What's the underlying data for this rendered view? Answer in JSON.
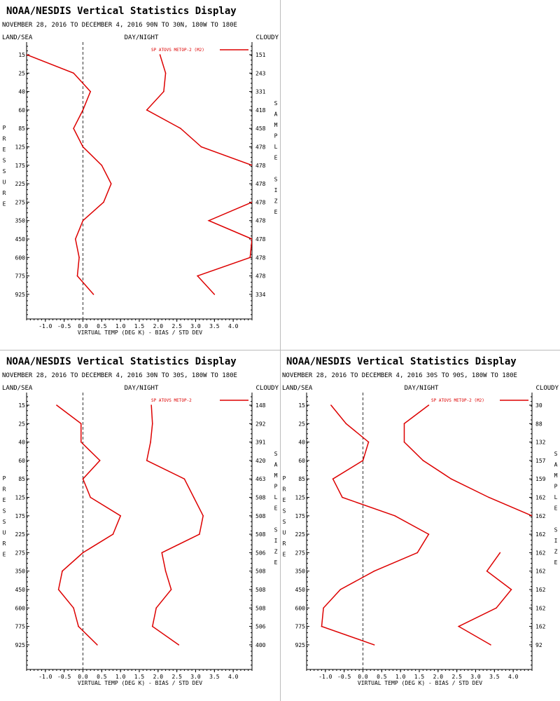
{
  "panel_title": "NOAA/NESDIS Vertical Statistics Display",
  "header_labels": {
    "left": "LAND/SEA",
    "center": "DAY/NIGHT",
    "right": "CLOUDY"
  },
  "left_axis_label": "PRESSURE",
  "right_axis_label": "SAMPLE SIZE",
  "colors": {
    "series": "#dd0000",
    "axis": "#000000",
    "zero_line": "#333333"
  },
  "chart_data": [
    {
      "type": "line",
      "subtitle": "NOVEMBER 28, 2016 TO DECEMBER 4, 2016 90N TO 30N, 180W TO 180E",
      "legend": "SP ATOVS METOP-2 (M2)",
      "legend_position": "top-right",
      "xlabel": "VIRTUAL TEMP (DEG K) - BIAS / STD DEV",
      "xlim": [
        -1.5,
        4.5
      ],
      "xticks": [
        "-1.0",
        "-0.5",
        "0.0",
        "0.5",
        "1.0",
        "1.5",
        "2.0",
        "2.5",
        "3.0",
        "3.5",
        "4.0"
      ],
      "pressure_levels": [
        "15",
        "25",
        "40",
        "60",
        "85",
        "125",
        "175",
        "225",
        "275",
        "350",
        "450",
        "600",
        "775",
        "925"
      ],
      "sample_size": [
        "151",
        "243",
        "331",
        "418",
        "458",
        "478",
        "478",
        "478",
        "478",
        "478",
        "478",
        "478",
        "478",
        "334"
      ],
      "zero_line": "dashed",
      "series": [
        {
          "values": [
            -1.5,
            -0.25,
            0.2,
            0.0,
            -0.25,
            0.0,
            0.5,
            0.75,
            0.55,
            0.0,
            -0.2,
            -0.1,
            -0.15,
            0.28
          ]
        },
        {
          "values": [
            2.05,
            2.2,
            2.15,
            1.7,
            2.6,
            3.15,
            4.5,
            null,
            4.5,
            3.35,
            4.5,
            4.45,
            3.05,
            3.5
          ]
        }
      ]
    },
    {
      "type": "line",
      "subtitle": "NOVEMBER 28, 2016 TO DECEMBER 4, 2016 30N TO 30S, 180W TO 180E",
      "legend": "SP ATOVS METOP-2",
      "legend_position": "top-right",
      "xlabel": "VIRTUAL TEMP (DEG K) - BIAS / STD DEV",
      "xlim": [
        -1.5,
        4.5
      ],
      "xticks": [
        "-1.0",
        "-0.5",
        "0.0",
        "0.5",
        "1.0",
        "1.5",
        "2.0",
        "2.5",
        "3.0",
        "3.5",
        "4.0"
      ],
      "pressure_levels": [
        "15",
        "25",
        "40",
        "60",
        "85",
        "125",
        "175",
        "225",
        "275",
        "350",
        "450",
        "600",
        "775",
        "925"
      ],
      "sample_size": [
        "148",
        "292",
        "391",
        "420",
        "463",
        "508",
        "508",
        "508",
        "506",
        "508",
        "508",
        "508",
        "506",
        "400"
      ],
      "zero_line": "dashed",
      "series": [
        {
          "values": [
            -0.7,
            -0.05,
            -0.05,
            0.45,
            0.0,
            0.2,
            1.0,
            0.8,
            0.0,
            -0.55,
            -0.65,
            -0.25,
            -0.12,
            0.38
          ]
        },
        {
          "values": [
            1.82,
            1.85,
            1.8,
            1.7,
            2.7,
            2.95,
            3.2,
            3.1,
            2.1,
            2.2,
            2.35,
            1.95,
            1.85,
            2.55
          ]
        }
      ]
    },
    {
      "type": "line",
      "subtitle": "NOVEMBER 28, 2016 TO DECEMBER 4, 2016 30S TO 90S, 180W TO 180E",
      "legend": "SP ATOVS METOP-2 (M2)",
      "legend_position": "top-right",
      "xlabel": "VIRTUAL TEMP (DEG K) - BIAS / STD DEV",
      "xlim": [
        -1.5,
        4.5
      ],
      "xticks": [
        "-1.0",
        "-0.5",
        "0.0",
        "0.5",
        "1.0",
        "1.5",
        "2.0",
        "2.5",
        "3.0",
        "3.5",
        "4.0"
      ],
      "pressure_levels": [
        "15",
        "25",
        "40",
        "60",
        "85",
        "125",
        "175",
        "225",
        "275",
        "350",
        "450",
        "600",
        "775",
        "925"
      ],
      "sample_size": [
        "30",
        "88",
        "132",
        "157",
        "159",
        "162",
        "162",
        "162",
        "162",
        "162",
        "162",
        "162",
        "162",
        "92"
      ],
      "zero_line": "dashed",
      "series": [
        {
          "values": [
            -0.85,
            -0.45,
            0.15,
            0.0,
            -0.8,
            -0.55,
            0.85,
            1.75,
            1.45,
            0.3,
            -0.6,
            -1.05,
            -1.1,
            0.3
          ]
        },
        {
          "values": [
            1.75,
            1.1,
            1.1,
            1.6,
            2.35,
            3.35,
            4.5,
            null,
            3.65,
            3.3,
            3.95,
            3.55,
            2.55,
            3.4
          ]
        }
      ]
    }
  ]
}
